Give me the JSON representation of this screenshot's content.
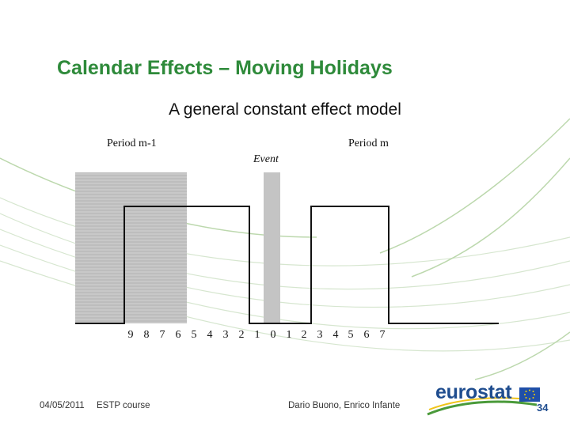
{
  "slide": {
    "title": "Calendar Effects – Moving Holidays",
    "subtitle": "A general constant effect model"
  },
  "diagram": {
    "label_period_prev": "Period m-1",
    "label_event": "Event",
    "label_period_curr": "Period m",
    "axis_ticks": [
      "9",
      "8",
      "7",
      "6",
      "5",
      "4",
      "3",
      "2",
      "1",
      "0",
      "1",
      "2",
      "3",
      "4",
      "5",
      "6",
      "7"
    ],
    "colors": {
      "shaded_period": "#c8c8c8",
      "event_bar": "#c4c4c4",
      "lines": "#111111"
    }
  },
  "footer": {
    "date": "04/05/2011",
    "course": "ESTP course",
    "authors": "Dario Buono, Enrico Infante",
    "logo_text": "eurostat",
    "page_number": "34"
  }
}
